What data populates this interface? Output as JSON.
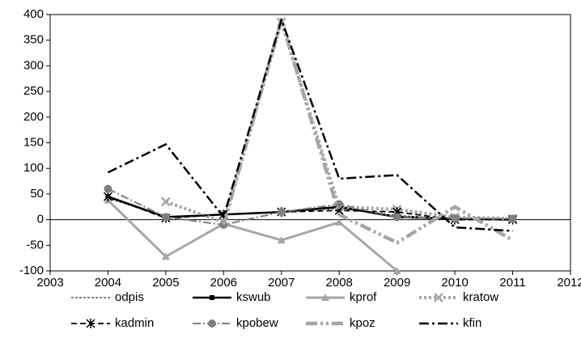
{
  "chart_data": {
    "type": "line",
    "x": [
      2004,
      2005,
      2006,
      2007,
      2008,
      2009,
      2010,
      2011
    ],
    "xlim": [
      2003,
      2012
    ],
    "xticks": [
      2003,
      2004,
      2005,
      2006,
      2007,
      2008,
      2009,
      2010,
      2011,
      2012
    ],
    "ylim": [
      -100,
      400
    ],
    "yticks": [
      -100,
      -50,
      0,
      50,
      100,
      150,
      200,
      250,
      300,
      350,
      400
    ],
    "series": [
      {
        "name": "odpis",
        "color": "#000000",
        "values": [
          42,
          5,
          10,
          15,
          22,
          8,
          2,
          0
        ]
      },
      {
        "name": "kswub",
        "color": "#000000",
        "values": [
          45,
          5,
          10,
          15,
          25,
          5,
          2,
          0
        ]
      },
      {
        "name": "kprof",
        "color": "#a6a6a6",
        "values": [
          38,
          -72,
          -8,
          -40,
          -5,
          -100,
          null,
          null
        ]
      },
      {
        "name": "kratow",
        "color": "#a6a6a6",
        "values": [
          null,
          35,
          -5,
          385,
          25,
          20,
          5,
          2
        ]
      },
      {
        "name": "kadmin",
        "color": "#000000",
        "values": [
          45,
          3,
          10,
          15,
          18,
          15,
          0,
          0
        ]
      },
      {
        "name": "kpobew",
        "color": "#7f7f7f",
        "values": [
          60,
          5,
          -10,
          15,
          30,
          5,
          3,
          2
        ]
      },
      {
        "name": "kpoz",
        "color": "#a6a6a6",
        "values": [
          null,
          null,
          -10,
          390,
          10,
          -45,
          25,
          -40
        ]
      },
      {
        "name": "kfin",
        "color": "#000000",
        "values": [
          92,
          147,
          5,
          390,
          80,
          87,
          -15,
          -22
        ]
      }
    ]
  }
}
